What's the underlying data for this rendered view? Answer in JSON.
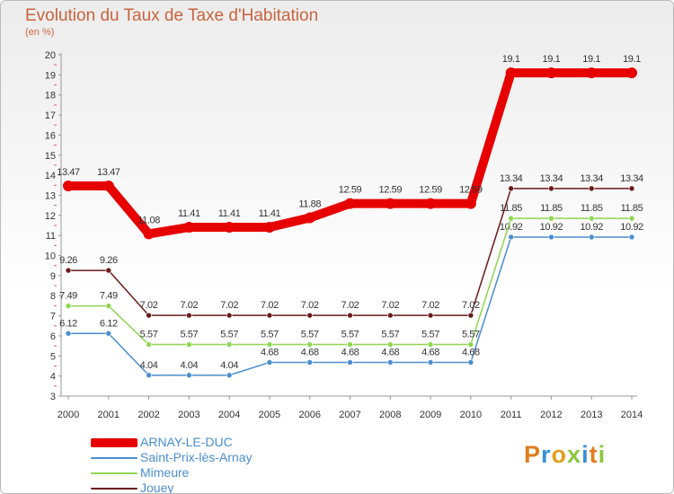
{
  "title": "Evolution du Taux de Taxe d'Habitation",
  "subtitle": "(en %)",
  "logo": {
    "text": "Proxiti",
    "letters": [
      "P",
      "r",
      "o",
      "x",
      "i",
      "t",
      "i"
    ],
    "letter_colors": [
      "#e07c1c",
      "#3a8fd6",
      "#e0a020",
      "#8cc63e",
      "#3a8fd6",
      "#e07c1c",
      "#8cc63e"
    ]
  },
  "chart_data": {
    "type": "line",
    "title": "Evolution du Taux de Taxe d'Habitation",
    "ylabel": "(en %)",
    "xlabel": "",
    "categories": [
      "2000",
      "2001",
      "2002",
      "2003",
      "2004",
      "2005",
      "2006",
      "2007",
      "2008",
      "2009",
      "2010",
      "2011",
      "2012",
      "2013",
      "2014"
    ],
    "ylim": [
      3,
      20
    ],
    "yticks": [
      3,
      4,
      5,
      6,
      7,
      8,
      9,
      10,
      11,
      12,
      13,
      14,
      15,
      16,
      17,
      18,
      19,
      20
    ],
    "series": [
      {
        "name": "ARNAY-LE-DUC",
        "color": "#e60000",
        "values": [
          13.47,
          13.47,
          11.08,
          11.41,
          11.41,
          11.41,
          11.88,
          12.59,
          12.59,
          12.59,
          12.59,
          19.1,
          19.1,
          19.1,
          19.1
        ],
        "labels": [
          "13.47",
          "13.47",
          "11.08",
          "11.41",
          "11.41",
          "11.41",
          "11.88",
          "12.59",
          "12.59",
          "12.59",
          "12.59",
          "19.1",
          "19.1",
          "19.1",
          "19.1"
        ]
      },
      {
        "name": "Saint-Prix-lès-Arnay",
        "color": "#4a8ed0",
        "values": [
          6.12,
          6.12,
          4.04,
          4.04,
          4.04,
          4.68,
          4.68,
          4.68,
          4.68,
          4.68,
          4.68,
          10.92,
          10.92,
          10.92,
          10.92
        ],
        "labels": [
          "6.12",
          "6.12",
          "4.04",
          "4.04",
          "4.04",
          "4.68",
          "4.68",
          "4.68",
          "4.68",
          "4.68",
          "4.68",
          "10.92",
          "10.92",
          "10.92",
          "10.92"
        ]
      },
      {
        "name": "Mimeure",
        "color": "#8fd650",
        "values": [
          7.49,
          7.49,
          5.57,
          5.57,
          5.57,
          5.57,
          5.57,
          5.57,
          5.57,
          5.57,
          5.57,
          11.85,
          11.85,
          11.85,
          11.85
        ],
        "labels": [
          "7.49",
          "7.49",
          "5.57",
          "5.57",
          "5.57",
          "5.57",
          "5.57",
          "5.57",
          "5.57",
          "5.57",
          "5.57",
          "11.85",
          "11.85",
          "11.85",
          "11.85"
        ]
      },
      {
        "name": "Jouey",
        "color": "#6b1a1a",
        "values": [
          9.26,
          9.26,
          7.02,
          7.02,
          7.02,
          7.02,
          7.02,
          7.02,
          7.02,
          7.02,
          7.02,
          13.34,
          13.34,
          13.34,
          13.34
        ],
        "labels": [
          "9.26",
          "9.26",
          "7.02",
          "7.02",
          "7.02",
          "7.02",
          "7.02",
          "7.02",
          "7.02",
          "7.02",
          "7.02",
          "13.34",
          "13.34",
          "13.34",
          "13.34"
        ]
      }
    ],
    "legend_position": "bottom-left",
    "grid": false
  }
}
